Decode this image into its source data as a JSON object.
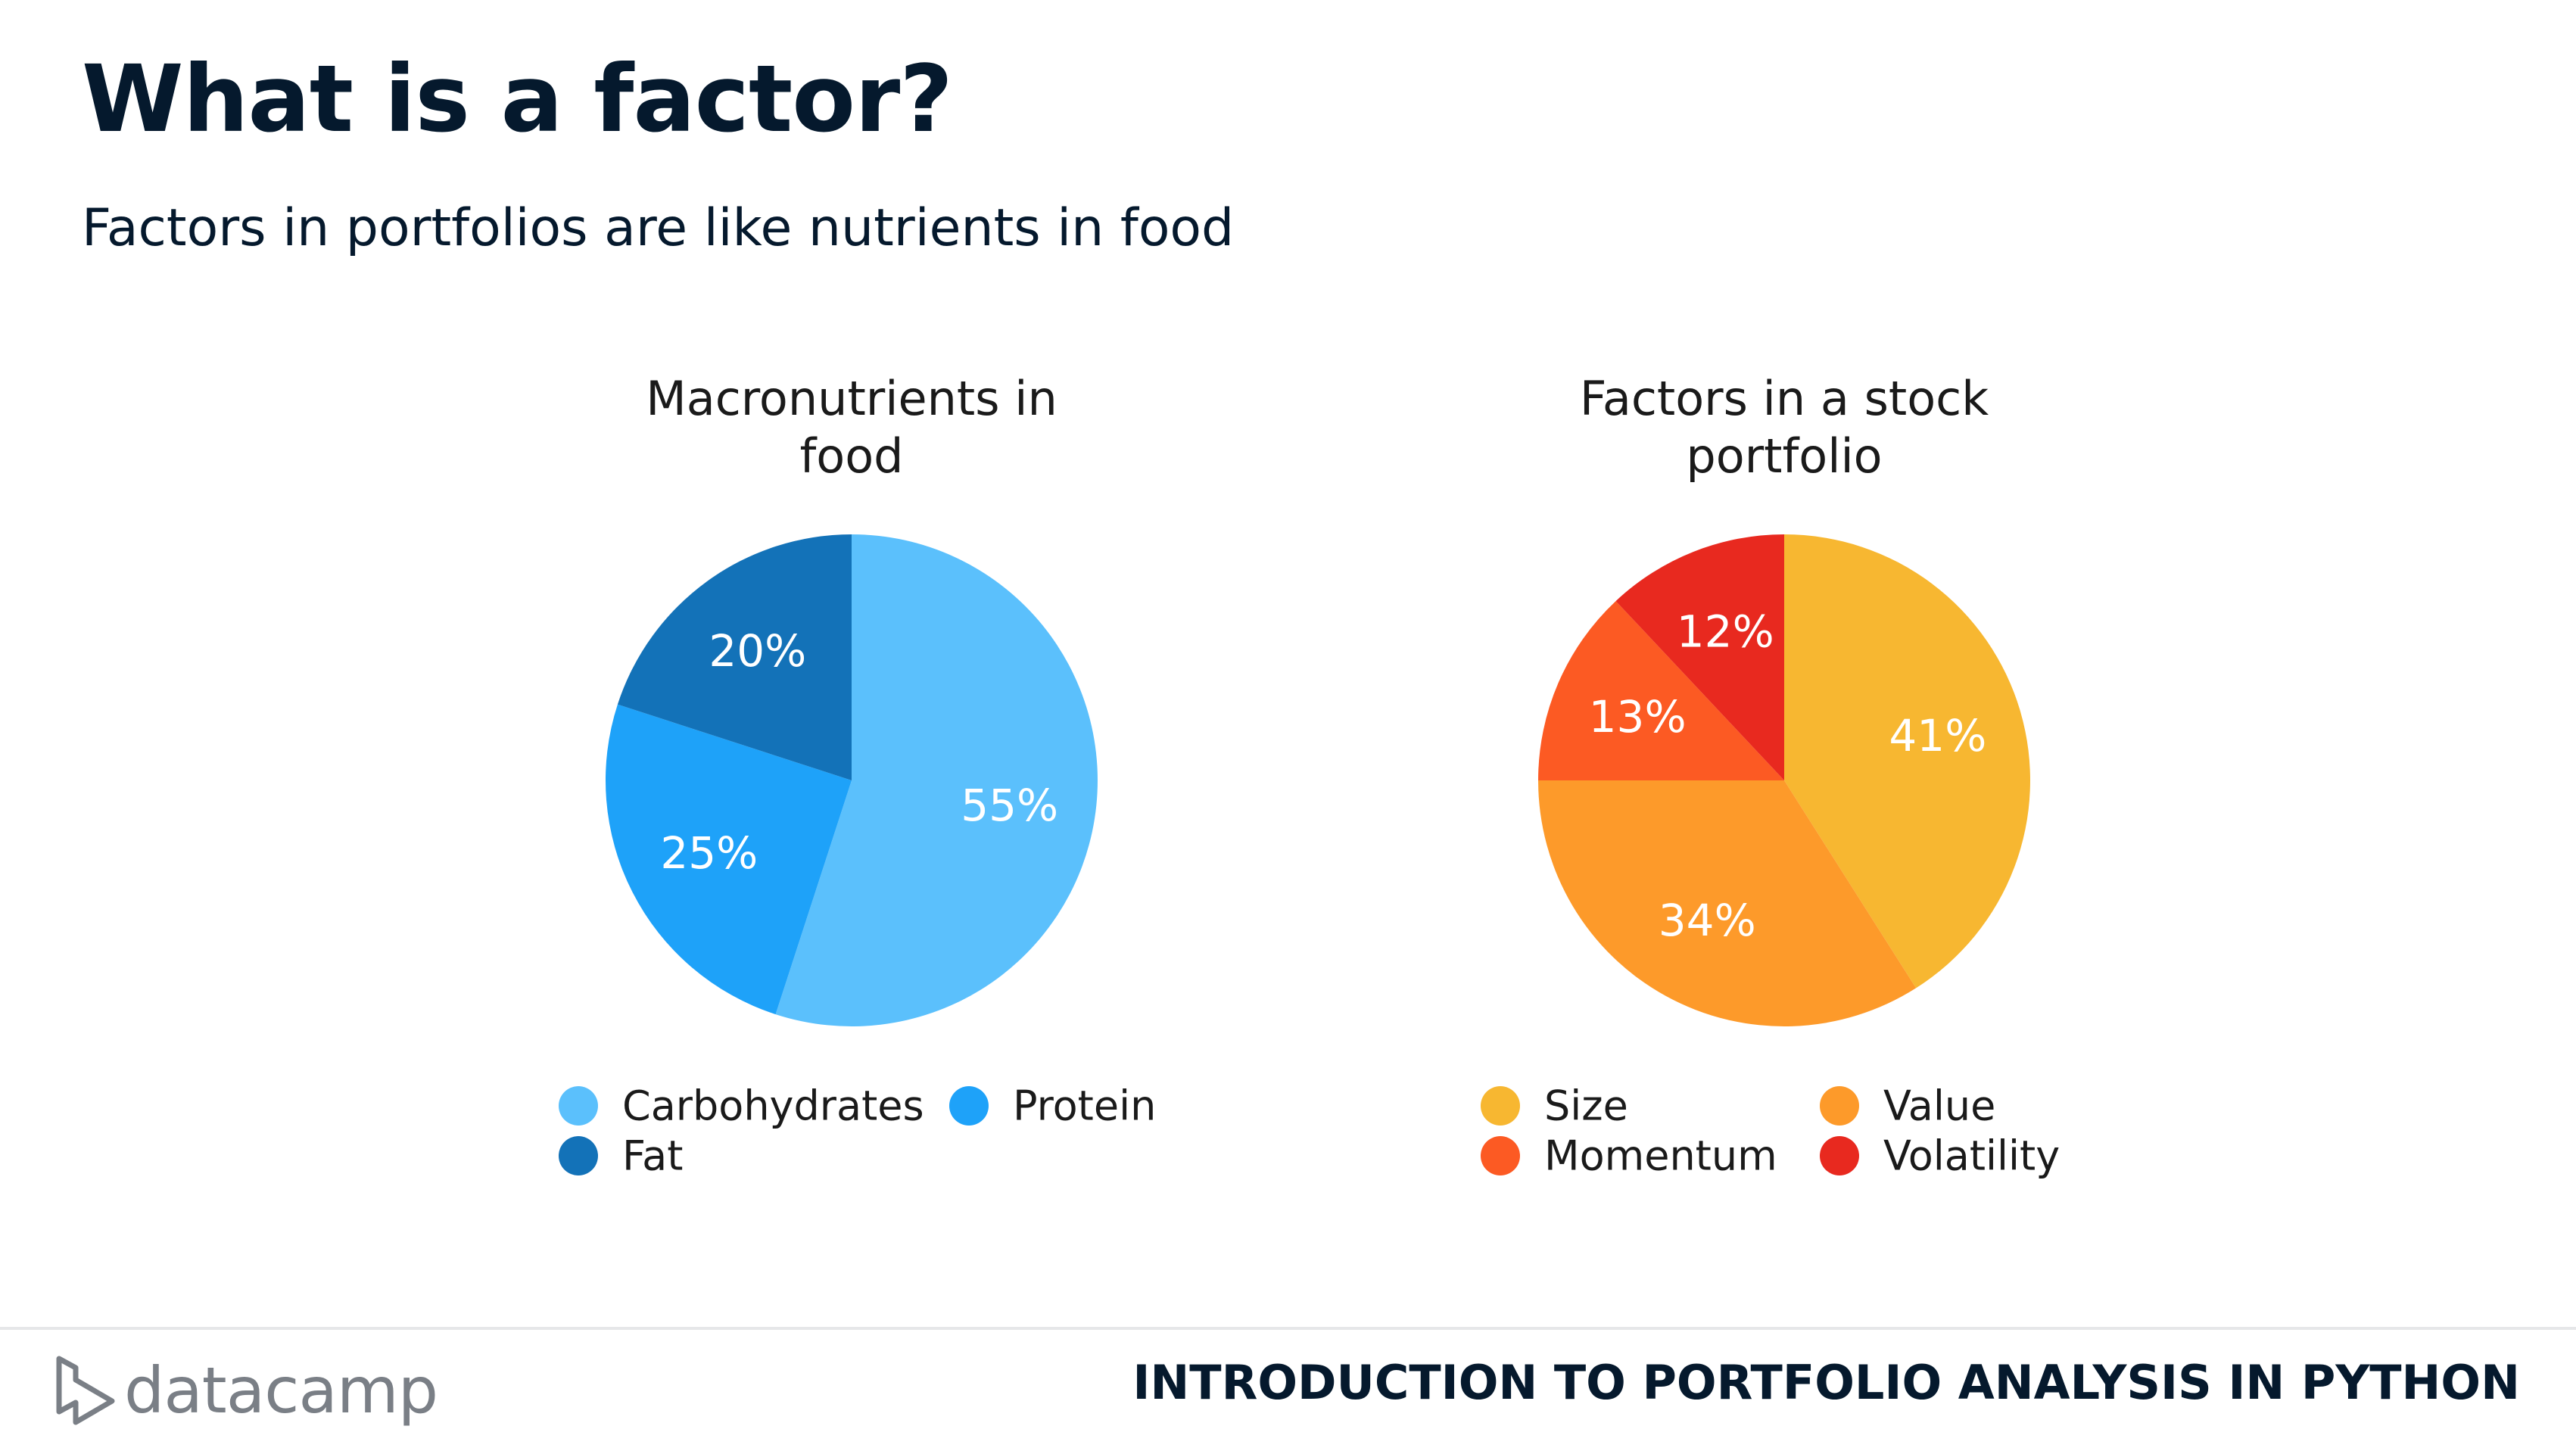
{
  "slide": {
    "title": "What is a factor?",
    "subtitle": "Factors in portfolios are like nutrients in food"
  },
  "footer": {
    "logo_text": "datacamp",
    "course_title": "INTRODUCTION TO PORTFOLIO ANALYSIS IN PYTHON"
  },
  "chart_data": [
    {
      "type": "pie",
      "title_lines": [
        "Macronutrients in",
        "food"
      ],
      "categories": [
        "Carbohydrates",
        "Protein",
        "Fat"
      ],
      "values": [
        55,
        25,
        20
      ],
      "labels": [
        "55%",
        "25%",
        "20%"
      ],
      "colors": [
        "#5bc0fc",
        "#1ea2f9",
        "#1372b8"
      ],
      "legend": "bottom",
      "direction": "clockwise-from-top"
    },
    {
      "type": "pie",
      "title_lines": [
        "Factors in a stock",
        "portfolio"
      ],
      "categories": [
        "Size",
        "Value",
        "Momentum",
        "Volatility"
      ],
      "values": [
        41,
        34,
        13,
        12
      ],
      "labels": [
        "41%",
        "34%",
        "13%",
        "12%"
      ],
      "colors": [
        "#f7b731",
        "#fd9a2a",
        "#fc5a23",
        "#e8291f"
      ],
      "legend": "bottom",
      "direction": "clockwise-from-top"
    }
  ]
}
